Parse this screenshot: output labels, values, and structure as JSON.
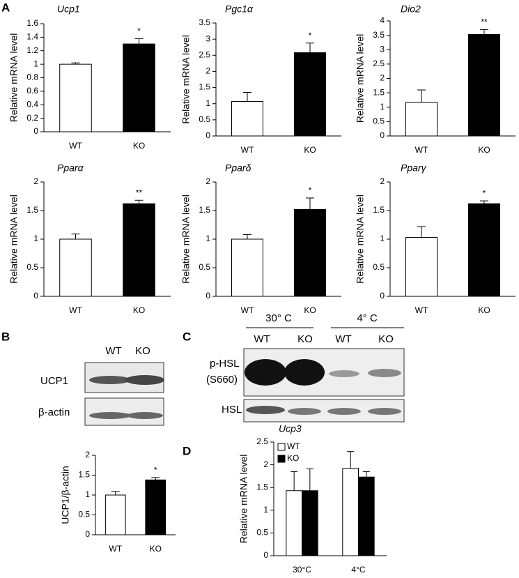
{
  "panel_labels": [
    "A",
    "B",
    "C",
    "D"
  ],
  "chart_data": [
    {
      "type": "bar",
      "title": "Ucp1",
      "ylabel": "Relative mRNA level",
      "categories": [
        "WT",
        "KO"
      ],
      "values": [
        1.0,
        1.3
      ],
      "errors": [
        0.02,
        0.08
      ],
      "colors": [
        "#ffffff",
        "#000000"
      ],
      "annotation": "*",
      "ylim": [
        0,
        1.6
      ],
      "yticks": [
        0,
        0.2,
        0.4,
        0.6,
        0.8,
        1,
        1.2,
        1.4,
        1.6
      ]
    },
    {
      "type": "bar",
      "title": "Pgc1α",
      "ylabel": "Relative mRNA level",
      "categories": [
        "WT",
        "KO"
      ],
      "values": [
        1.07,
        2.58
      ],
      "errors": [
        0.28,
        0.3
      ],
      "colors": [
        "#ffffff",
        "#000000"
      ],
      "annotation": "*",
      "ylim": [
        0,
        3.5
      ],
      "yticks": [
        0,
        0.5,
        1,
        1.5,
        2,
        2.5,
        3,
        3.5
      ]
    },
    {
      "type": "bar",
      "title": "Dio2",
      "ylabel": "Relative mRNA level",
      "categories": [
        "WT",
        "KO"
      ],
      "values": [
        1.17,
        3.53
      ],
      "errors": [
        0.43,
        0.17
      ],
      "colors": [
        "#ffffff",
        "#000000"
      ],
      "annotation": "**",
      "ylim": [
        0,
        4
      ],
      "yticks": [
        0,
        0.5,
        1,
        1.5,
        2,
        2.5,
        3,
        3.5,
        4
      ]
    },
    {
      "type": "bar",
      "title": "Pparα",
      "ylabel": "Relative mRNA level",
      "categories": [
        "WT",
        "KO"
      ],
      "values": [
        1.0,
        1.62
      ],
      "errors": [
        0.09,
        0.06
      ],
      "colors": [
        "#ffffff",
        "#000000"
      ],
      "annotation": "**",
      "ylim": [
        0,
        2
      ],
      "yticks": [
        0,
        0.5,
        1,
        1.5,
        2
      ]
    },
    {
      "type": "bar",
      "title": "Pparδ",
      "ylabel": "Relative mRNA level",
      "categories": [
        "WT",
        "KO"
      ],
      "values": [
        1.0,
        1.52
      ],
      "errors": [
        0.08,
        0.2
      ],
      "colors": [
        "#ffffff",
        "#000000"
      ],
      "annotation": "*",
      "ylim": [
        0,
        2
      ],
      "yticks": [
        0,
        0.5,
        1,
        1.5,
        2
      ]
    },
    {
      "type": "bar",
      "title": "Pparγ",
      "ylabel": "Relative mRNA level",
      "categories": [
        "WT",
        "KO"
      ],
      "values": [
        1.03,
        1.62
      ],
      "errors": [
        0.19,
        0.05
      ],
      "colors": [
        "#ffffff",
        "#000000"
      ],
      "annotation": "*",
      "ylim": [
        0,
        2
      ],
      "yticks": [
        0,
        0.5,
        1,
        1.5,
        2
      ]
    },
    {
      "type": "bar",
      "ylabel": "UCP1/β-actin",
      "categories": [
        "WT",
        "KO"
      ],
      "values": [
        1.0,
        1.38
      ],
      "errors": [
        0.09,
        0.06
      ],
      "colors": [
        "#ffffff",
        "#000000"
      ],
      "annotation": "*",
      "ylim": [
        0,
        2
      ],
      "yticks": [
        0,
        0.5,
        1,
        1.5,
        2
      ]
    },
    {
      "type": "grouped_bar",
      "title": "Ucp3",
      "ylabel": "Relative mRNA level",
      "categories": [
        "30°C",
        "4°C"
      ],
      "series": [
        {
          "name": "WT",
          "color": "#ffffff",
          "values": [
            1.43,
            1.92
          ],
          "errors": [
            0.42,
            0.37
          ]
        },
        {
          "name": "KO",
          "color": "#000000",
          "values": [
            1.43,
            1.73
          ],
          "errors": [
            0.48,
            0.12
          ]
        }
      ],
      "ylim": [
        0,
        2.5
      ],
      "yticks": [
        0,
        0.5,
        1,
        1.5,
        2,
        2.5
      ]
    }
  ],
  "blots": {
    "B": {
      "lanes": [
        "WT",
        "KO"
      ],
      "rows": [
        "UCP1",
        "β-actin"
      ]
    },
    "C": {
      "groups": [
        "30° C",
        "4° C"
      ],
      "lanes": [
        "WT",
        "KO",
        "WT",
        "KO"
      ],
      "rows": [
        "p-HSL",
        "(S660)",
        "HSL"
      ]
    }
  }
}
